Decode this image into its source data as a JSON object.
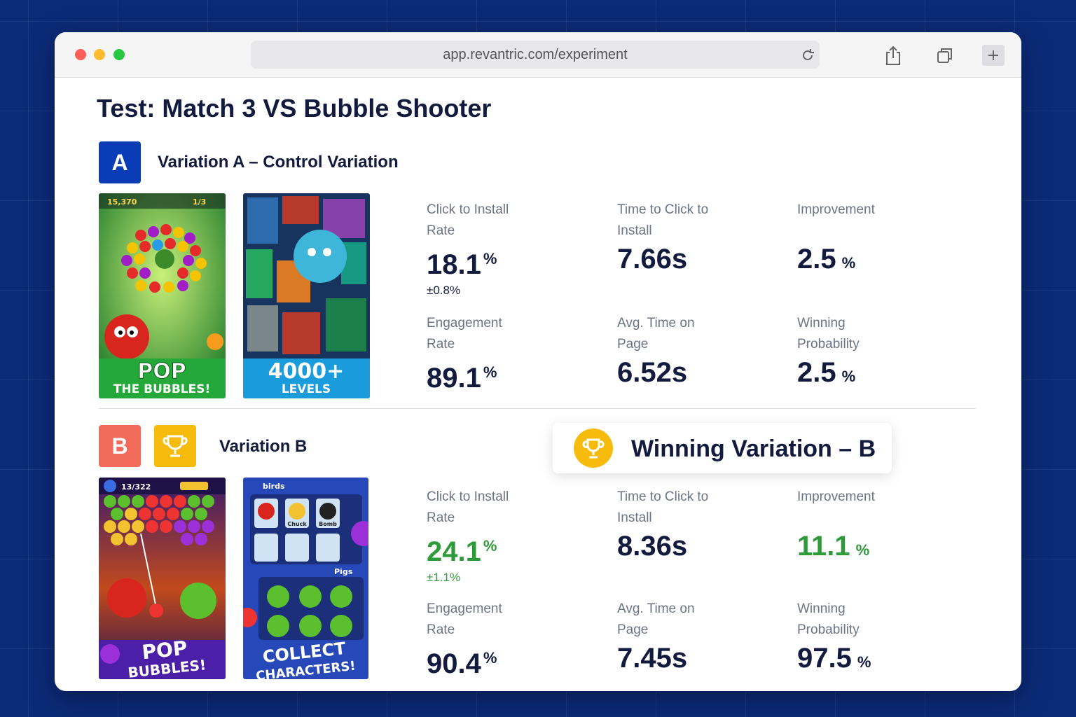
{
  "browser": {
    "url": "app.revantric.com/experiment"
  },
  "title": "Test: Match 3 VS Bubble Shooter",
  "variations": [
    {
      "badge": "A",
      "name": "Variation A – Control Variation",
      "images": [
        {
          "hud": [
            "15,370",
            "1/3"
          ],
          "caption": [
            "POP",
            "THE BUBBLES!"
          ]
        },
        {
          "caption": [
            "4000+",
            "LEVELS"
          ]
        }
      ],
      "metrics": [
        {
          "label": "Click to Install Rate",
          "value": "18.1",
          "unit": "%",
          "note": "±0.8%"
        },
        {
          "label": "Time to Click to Install",
          "value": "7.66s"
        },
        {
          "label": "Improvement",
          "value": "2.5",
          "unit": "%",
          "unit_style": "low"
        },
        {
          "label": "Engagement Rate",
          "value": "89.1",
          "unit": "%"
        },
        {
          "label": "Avg. Time on Page",
          "value": "6.52s"
        },
        {
          "label": "Winning Probability",
          "value": "2.5",
          "unit": "%",
          "unit_style": "low"
        }
      ]
    },
    {
      "badge": "B",
      "name": "Variation B",
      "images": [
        {
          "hud": [
            "13/322"
          ],
          "caption": [
            "POP",
            "BUBBLES!"
          ]
        },
        {
          "labels": [
            "birds",
            "Pigs",
            "Chuck",
            "Bomb"
          ],
          "caption": [
            "COLLECT",
            "CHARACTERS!"
          ]
        }
      ],
      "metrics": [
        {
          "label": "Click to Install Rate",
          "value": "24.1",
          "unit": "%",
          "note": "±1.1%",
          "color": "#2f9a3a"
        },
        {
          "label": "Time to Click to Install",
          "value": "8.36s"
        },
        {
          "label": "Improvement",
          "value": "11.1",
          "unit": "%",
          "unit_style": "low",
          "color": "#2f9a3a"
        },
        {
          "label": "Engagement Rate",
          "value": "90.4",
          "unit": "%"
        },
        {
          "label": "Avg. Time on Page",
          "value": "7.45s"
        },
        {
          "label": "Winning Probability",
          "value": "97.5",
          "unit": "%",
          "unit_style": "low"
        }
      ]
    }
  ],
  "winner": {
    "label": "Winning Variation – B"
  }
}
